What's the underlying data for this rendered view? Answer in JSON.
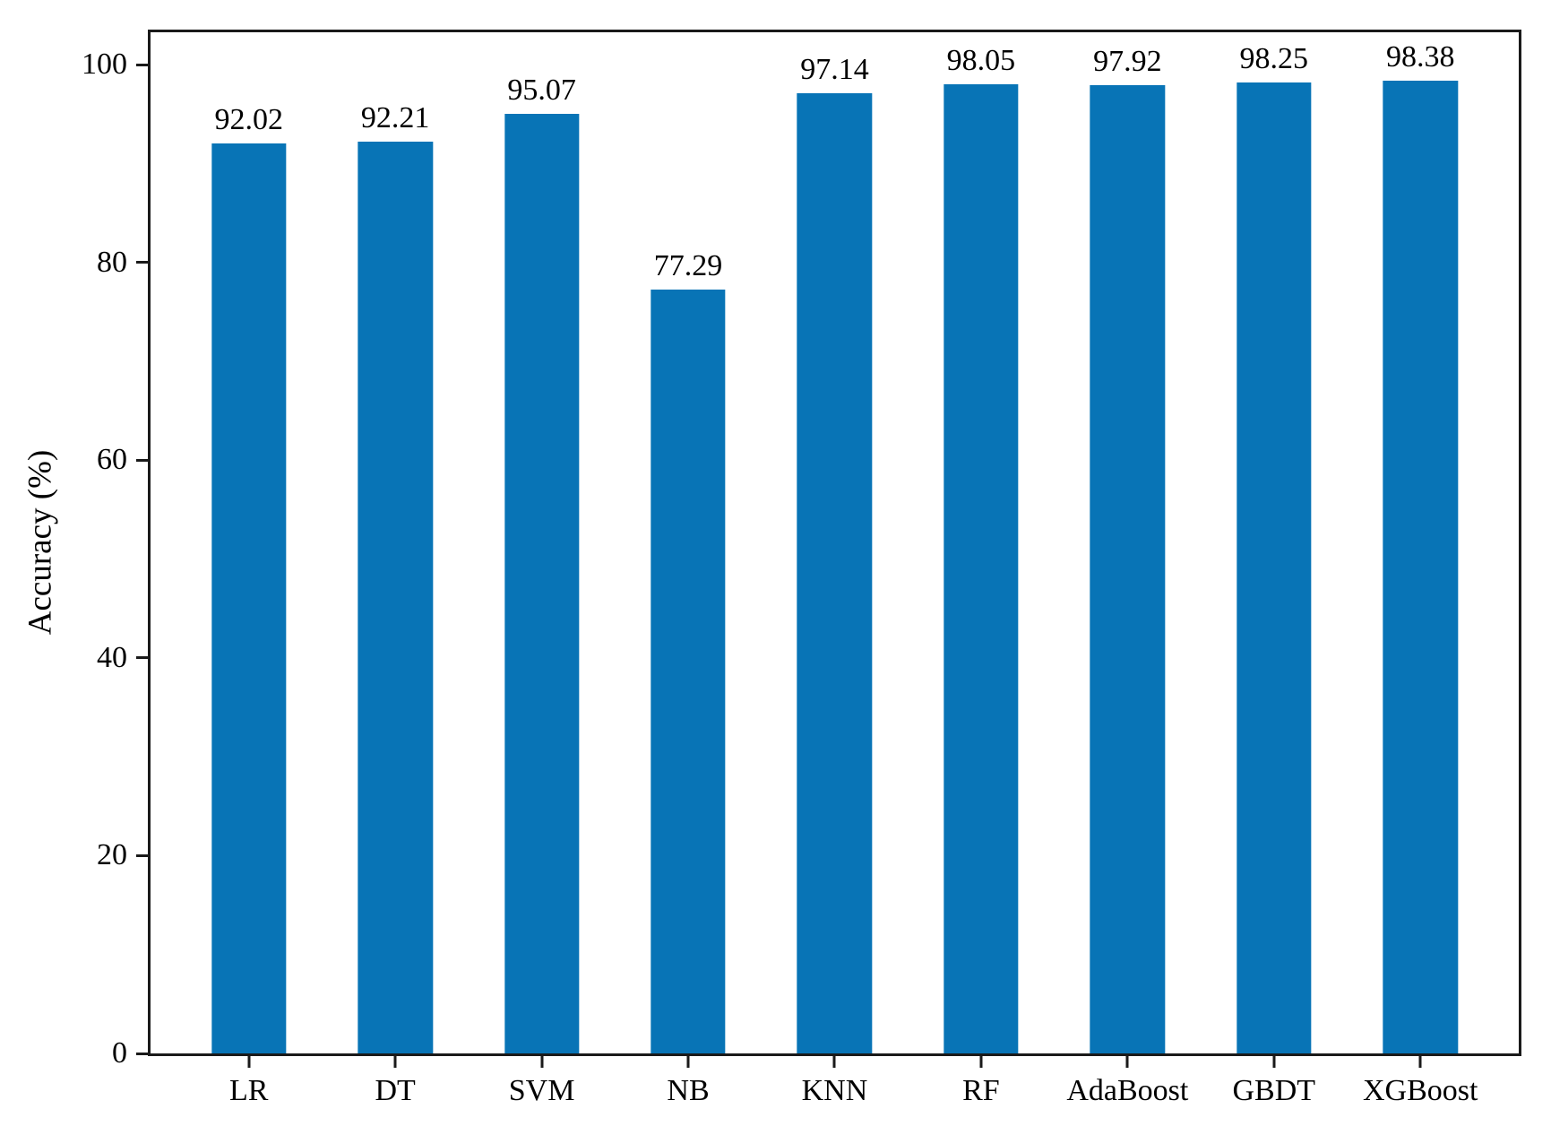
{
  "chart_data": {
    "type": "bar",
    "title": "",
    "xlabel": "",
    "ylabel": "Accuracy (%)",
    "categories": [
      "LR",
      "DT",
      "SVM",
      "NB",
      "KNN",
      "RF",
      "AdaBoost",
      "GBDT",
      "XGBoost"
    ],
    "values": [
      92.02,
      92.21,
      95.07,
      77.29,
      97.14,
      98.05,
      97.92,
      98.25,
      98.38
    ],
    "value_labels": [
      "92.02",
      "92.21",
      "95.07",
      "77.29",
      "97.14",
      "98.05",
      "97.92",
      "98.25",
      "98.38"
    ],
    "yticks": [
      0,
      20,
      40,
      60,
      80,
      100
    ],
    "ylim": [
      0,
      103.3
    ],
    "grid": false,
    "legend": "none",
    "bar_color": "#0874b6",
    "axis_color": "#1a1a1a",
    "text_color": "#000000",
    "background_color": "#ffffff"
  }
}
